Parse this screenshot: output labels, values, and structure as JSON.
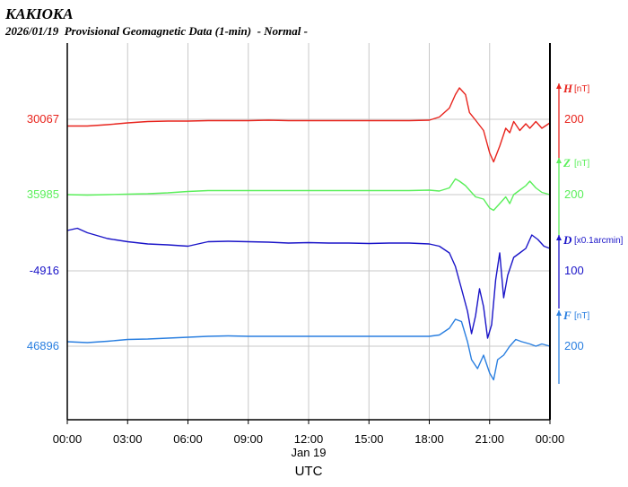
{
  "header": {
    "station": "KAKIOKA",
    "subtitle": "2026/01/19  Provisional Geomagnetic Data (1-min)  - Normal -"
  },
  "chart_data": {
    "type": "line",
    "xlabel": "UTC",
    "date_label": "Jan 19",
    "x_ticks": [
      "00:00",
      "03:00",
      "06:00",
      "09:00",
      "12:00",
      "15:00",
      "18:00",
      "21:00",
      "00:00"
    ],
    "x_range_hours": [
      0,
      24
    ],
    "grid": true,
    "series": [
      {
        "name": "H",
        "unit": "[nT]",
        "color": "#e8231c",
        "baseline_label": "30067",
        "scale_label": "200",
        "hours": [
          0,
          1,
          2,
          3,
          4,
          5,
          6,
          7,
          8,
          9,
          10,
          11,
          12,
          13,
          14,
          15,
          16,
          17,
          18,
          18.5,
          19,
          19.3,
          19.5,
          19.8,
          20,
          20.3,
          20.7,
          21,
          21.2,
          21.5,
          21.8,
          22,
          22.2,
          22.5,
          22.8,
          23,
          23.3,
          23.6,
          24
        ],
        "values": [
          -15,
          -15,
          -12,
          -8,
          -5,
          -4,
          -4,
          -3,
          -3,
          -3,
          -2,
          -3,
          -3,
          -3,
          -3,
          -3,
          -3,
          -3,
          -2,
          5,
          25,
          55,
          70,
          55,
          15,
          -2,
          -25,
          -75,
          -95,
          -60,
          -20,
          -30,
          -5,
          -25,
          -10,
          -20,
          -5,
          -20,
          -8
        ]
      },
      {
        "name": "Z",
        "unit": "[nT]",
        "color": "#5aef5a",
        "baseline_label": "35985",
        "scale_label": "200",
        "hours": [
          0,
          1,
          2,
          3,
          4,
          5,
          6,
          7,
          8,
          9,
          10,
          11,
          12,
          13,
          14,
          15,
          16,
          17,
          18,
          18.5,
          19,
          19.3,
          19.5,
          19.8,
          20,
          20.3,
          20.7,
          21,
          21.2,
          21.5,
          21.8,
          22,
          22.2,
          22.5,
          22.8,
          23,
          23.3,
          23.6,
          24
        ],
        "values": [
          0,
          -1,
          0,
          1,
          2,
          4,
          7,
          9,
          9,
          9,
          9,
          9,
          9,
          9,
          9,
          9,
          9,
          9,
          10,
          8,
          15,
          35,
          30,
          20,
          10,
          -5,
          -10,
          -30,
          -35,
          -20,
          -5,
          -20,
          0,
          10,
          20,
          30,
          15,
          5,
          0
        ]
      },
      {
        "name": "D",
        "unit": "[x0.1arcmin]",
        "color": "#1a14c8",
        "baseline_label": "-4916",
        "scale_label": "100",
        "hours": [
          0,
          0.5,
          1,
          2,
          3,
          4,
          5,
          6,
          7,
          8,
          9,
          10,
          11,
          12,
          13,
          14,
          15,
          16,
          17,
          18,
          18.5,
          19,
          19.3,
          19.6,
          19.9,
          20.1,
          20.3,
          20.5,
          20.7,
          20.9,
          21.1,
          21.3,
          21.5,
          21.7,
          21.9,
          22.2,
          22.5,
          22.8,
          23.1,
          23.4,
          23.7,
          24
        ],
        "values": [
          90,
          95,
          85,
          72,
          65,
          60,
          58,
          55,
          65,
          66,
          65,
          64,
          62,
          63,
          62,
          62,
          61,
          62,
          62,
          60,
          55,
          40,
          10,
          -40,
          -90,
          -140,
          -100,
          -40,
          -80,
          -150,
          -120,
          -20,
          40,
          -60,
          -10,
          30,
          40,
          50,
          80,
          70,
          55,
          50
        ]
      },
      {
        "name": "F",
        "unit": "[nT]",
        "color": "#2a7fe0",
        "baseline_label": "46896",
        "scale_label": "200",
        "hours": [
          0,
          1,
          2,
          3,
          4,
          5,
          6,
          7,
          8,
          9,
          10,
          11,
          12,
          13,
          14,
          15,
          16,
          17,
          18,
          18.5,
          19,
          19.3,
          19.6,
          19.9,
          20.1,
          20.4,
          20.7,
          21,
          21.2,
          21.4,
          21.7,
          22,
          22.3,
          22.6,
          23,
          23.3,
          23.6,
          24
        ],
        "values": [
          10,
          8,
          11,
          15,
          16,
          18,
          20,
          22,
          23,
          22,
          22,
          22,
          22,
          22,
          22,
          22,
          22,
          22,
          22,
          25,
          40,
          60,
          55,
          10,
          -30,
          -50,
          -20,
          -60,
          -75,
          -30,
          -20,
          0,
          15,
          10,
          5,
          0,
          5,
          0
        ]
      }
    ]
  }
}
